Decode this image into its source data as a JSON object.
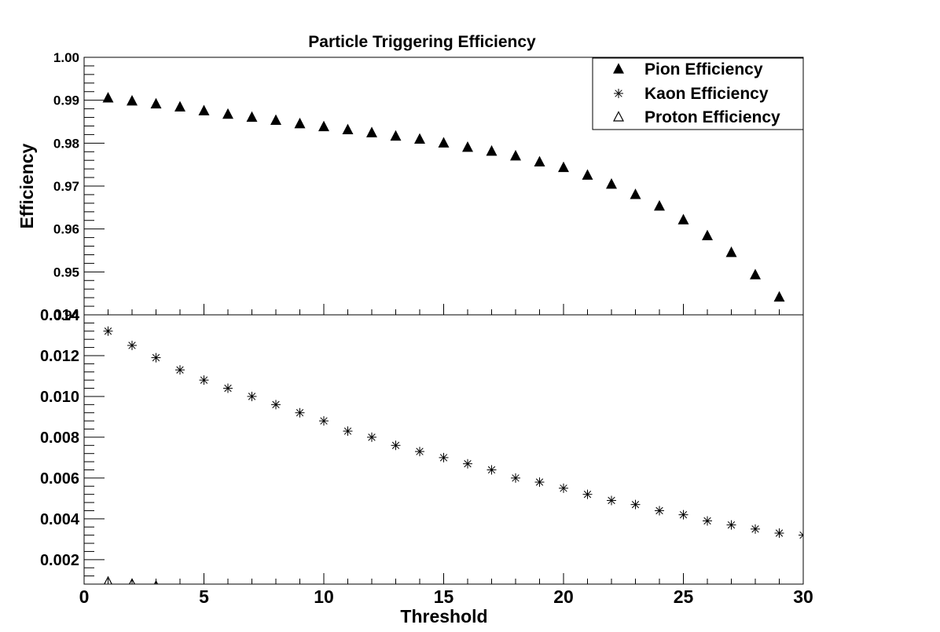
{
  "chart_data": [
    {
      "type": "scatter",
      "panel": "top",
      "title": "Particle Triggering Efficiency",
      "xlabel": "",
      "ylabel": "Efficiency",
      "xlim": [
        0,
        30
      ],
      "ylim": [
        0.94,
        1.0
      ],
      "y_ticks": [
        "0.94",
        "0.95",
        "0.96",
        "0.97",
        "0.98",
        "0.99",
        "1.00"
      ],
      "series": [
        {
          "name": "Pion Efficiency",
          "marker": "filled-triangle",
          "x": [
            1,
            2,
            3,
            4,
            5,
            6,
            7,
            8,
            9,
            10,
            11,
            12,
            13,
            14,
            15,
            16,
            17,
            18,
            19,
            20,
            21,
            22,
            23,
            24,
            25,
            26,
            27,
            28,
            29
          ],
          "values": [
            0.9905,
            0.9898,
            0.9891,
            0.9884,
            0.9875,
            0.9867,
            0.986,
            0.9853,
            0.9845,
            0.9838,
            0.9831,
            0.9824,
            0.9816,
            0.9809,
            0.98,
            0.979,
            0.9781,
            0.977,
            0.9756,
            0.9743,
            0.9725,
            0.9704,
            0.968,
            0.9653,
            0.9621,
            0.9584,
            0.9545,
            0.9493,
            0.9441
          ]
        }
      ]
    },
    {
      "type": "scatter",
      "panel": "bottom",
      "xlabel": "Threshold",
      "ylabel": "",
      "xlim": [
        0,
        30
      ],
      "ylim": [
        0.0008,
        0.014
      ],
      "x_ticks": [
        "0",
        "5",
        "10",
        "15",
        "20",
        "25",
        "30"
      ],
      "y_ticks": [
        "0.002",
        "0.004",
        "0.006",
        "0.008",
        "0.010",
        "0.012",
        "0.014"
      ],
      "series": [
        {
          "name": "Kaon Efficiency",
          "marker": "asterisk",
          "x": [
            1,
            2,
            3,
            4,
            5,
            6,
            7,
            8,
            9,
            10,
            11,
            12,
            13,
            14,
            15,
            16,
            17,
            18,
            19,
            20,
            21,
            22,
            23,
            24,
            25,
            26,
            27,
            28,
            29,
            30
          ],
          "values": [
            0.0132,
            0.0125,
            0.0119,
            0.0113,
            0.0108,
            0.0104,
            0.01,
            0.0096,
            0.0092,
            0.0088,
            0.0083,
            0.008,
            0.0076,
            0.0073,
            0.007,
            0.0067,
            0.0064,
            0.006,
            0.0058,
            0.0055,
            0.0052,
            0.0049,
            0.0047,
            0.0044,
            0.0042,
            0.0039,
            0.0037,
            0.0035,
            0.0033,
            0.0032
          ]
        },
        {
          "name": "Proton Efficiency",
          "marker": "open-triangle",
          "x": [
            1,
            2,
            3
          ],
          "values": [
            0.0009,
            0.0008,
            0.0007
          ]
        }
      ]
    }
  ],
  "legend": {
    "position": "top-right",
    "entries": [
      {
        "label": "Pion Efficiency",
        "marker": "filled-triangle"
      },
      {
        "label": "Kaon Efficiency",
        "marker": "asterisk"
      },
      {
        "label": "Proton Efficiency",
        "marker": "open-triangle"
      }
    ]
  }
}
